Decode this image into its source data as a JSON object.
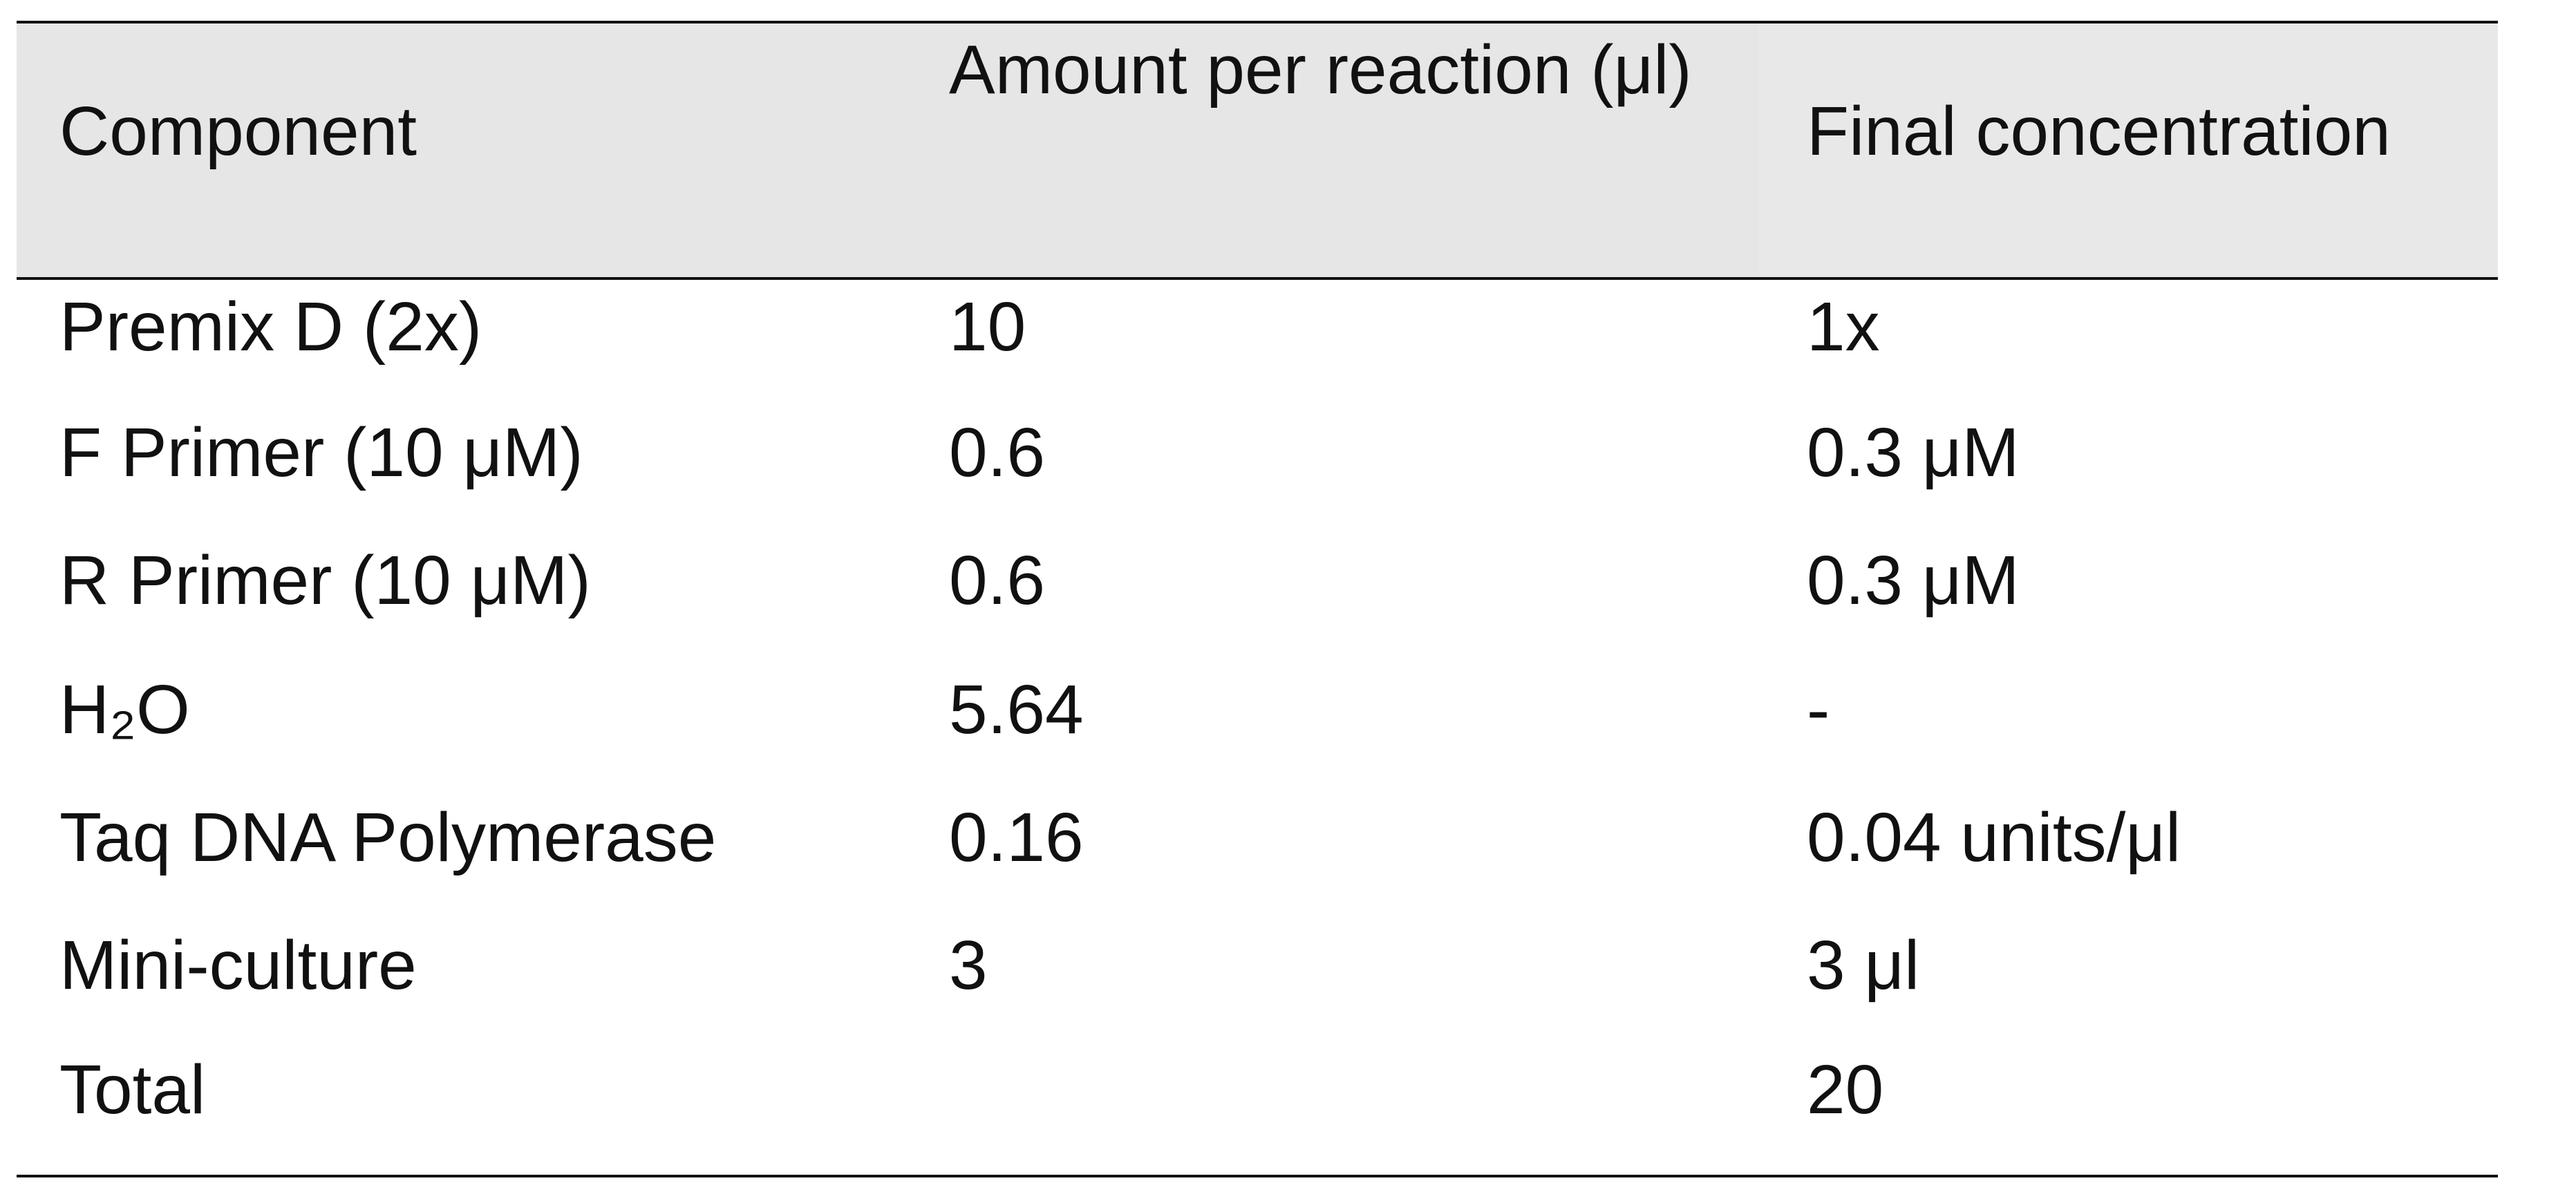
{
  "table": {
    "header": [
      "Component",
      "Amount per reaction (μl)",
      "Final concentration"
    ],
    "rows": [
      [
        "Premix D (2x)",
        "10",
        "1x"
      ],
      [
        "F Primer (10 μM)",
        "0.6",
        "0.3 μM"
      ],
      [
        "R Primer (10 μM)",
        "0.6",
        "0.3 μM"
      ],
      [
        "H₂O",
        "5.64",
        "-"
      ],
      [
        "Taq DNA Polymerase",
        "0.16",
        "0.04 units/μl"
      ],
      [
        "Mini-culture",
        "3",
        "3 μl"
      ],
      [
        "Total",
        null,
        "20"
      ]
    ]
  }
}
